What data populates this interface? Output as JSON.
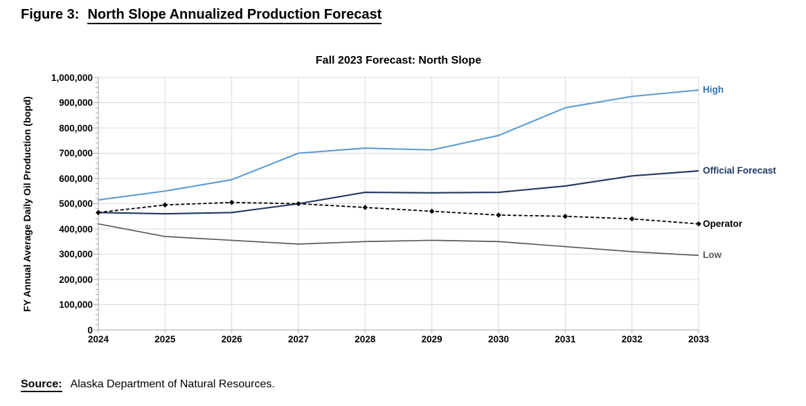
{
  "figure_title": {
    "prefix": "Figure 3:",
    "underlined": "North Slope Annualized Production Forecast"
  },
  "source": {
    "label": "Source:",
    "text": "Alaska Department of Natural Resources."
  },
  "chart_data": {
    "type": "line",
    "title": "Fall 2023 Forecast: North Slope",
    "xlabel": "",
    "ylabel": "FY Annual Average Daily Oil Production (bopd)",
    "x": [
      2024,
      2025,
      2026,
      2027,
      2028,
      2029,
      2030,
      2031,
      2032,
      2033
    ],
    "ylim": [
      0,
      1000000
    ],
    "y_tick_interval": 100000,
    "y_minor_tick_interval": 20000,
    "grid": true,
    "legend_position": "labels-at-line-ends-right",
    "colors": {
      "gridline": "#d9d9d9",
      "axis": "#a6a6a6",
      "text": "#000000"
    },
    "series": [
      {
        "name": "High",
        "color": "#5b9bd5",
        "label_color": "#2e75b6",
        "style": "solid",
        "marker": "none",
        "values": [
          515000,
          550000,
          595000,
          700000,
          720000,
          713000,
          770000,
          880000,
          925000,
          950000
        ]
      },
      {
        "name": "Official Forecast",
        "color": "#1f3864",
        "label_color": "#1f3864",
        "style": "solid",
        "marker": "none",
        "values": [
          465000,
          460000,
          465000,
          500000,
          545000,
          543000,
          545000,
          570000,
          610000,
          630000
        ]
      },
      {
        "name": "Operator",
        "color": "#000000",
        "label_color": "#000000",
        "style": "dashed",
        "marker": "diamond",
        "values": [
          465000,
          495000,
          505000,
          500000,
          485000,
          470000,
          455000,
          450000,
          440000,
          420000
        ]
      },
      {
        "name": "Low",
        "color": "#595959",
        "label_color": "#595959",
        "style": "solid",
        "marker": "none",
        "values": [
          420000,
          370000,
          355000,
          340000,
          350000,
          355000,
          350000,
          330000,
          310000,
          295000
        ]
      }
    ]
  }
}
